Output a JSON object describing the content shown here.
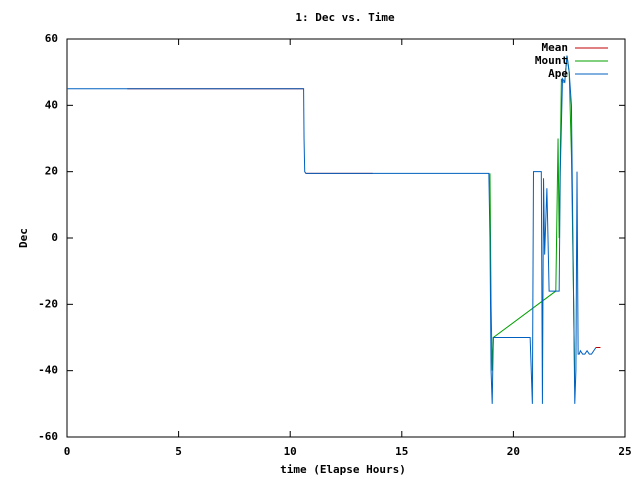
{
  "chart_data": {
    "type": "line",
    "title": "1: Dec vs. Time",
    "x_label": "time (Elapse Hours)",
    "y_label": "Dec",
    "xlim": [
      0,
      25
    ],
    "xticks": [
      0,
      5,
      10,
      15,
      20,
      25
    ],
    "ylim": [
      -60,
      60
    ],
    "yticks": [
      -60,
      -40,
      -20,
      0,
      20,
      40,
      60
    ],
    "grid": false,
    "legend": "top-right",
    "series": [
      {
        "name": "Mean",
        "color": "#c00000",
        "x": [
          2.7,
          10.6,
          10.65,
          10.7,
          13.7,
          13.75,
          23.7,
          23.9
        ],
        "values": [
          45,
          45,
          null,
          19.5,
          19.5,
          null,
          -33,
          -33
        ]
      },
      {
        "name": "Mount",
        "color": "#00a000",
        "x": [
          18.95,
          19.0,
          19.05,
          19.1,
          21.9,
          22.0,
          22.05,
          22.15,
          22.2,
          22.3,
          22.4,
          22.5,
          22.6,
          22.7,
          22.75
        ],
        "values": [
          19.5,
          -20,
          -40,
          -30,
          -16,
          30,
          0,
          48,
          47,
          47,
          55,
          50,
          25,
          -20,
          -45
        ]
      },
      {
        "name": "Ape",
        "color": "#0060c0",
        "x": [
          0,
          10.6,
          10.62,
          10.65,
          10.7,
          18.9,
          18.95,
          19.0,
          19.05,
          19.1,
          20.75,
          20.8,
          20.85,
          20.9,
          21.25,
          21.3,
          21.35,
          21.4,
          21.5,
          21.55,
          21.6,
          21.7,
          21.75,
          22.05,
          22.1,
          22.2,
          22.3,
          22.4,
          22.5,
          22.6,
          22.7,
          22.75,
          22.8,
          22.85,
          22.9,
          22.95,
          23.0,
          23.1,
          23.2,
          23.3,
          23.4,
          23.5,
          23.6,
          23.7
        ],
        "values": [
          45,
          45,
          30,
          20,
          19.5,
          19.5,
          0,
          -40,
          -50,
          -30,
          -30,
          -40,
          -50,
          20,
          20,
          -50,
          18,
          -5,
          15,
          0,
          -16,
          -16,
          -16,
          -16,
          20,
          48,
          47,
          55,
          50,
          40,
          -20,
          -50,
          -40,
          20,
          -35,
          -35,
          -34,
          -35,
          -35,
          -34,
          -35,
          -35,
          -34,
          -33
        ]
      }
    ]
  }
}
